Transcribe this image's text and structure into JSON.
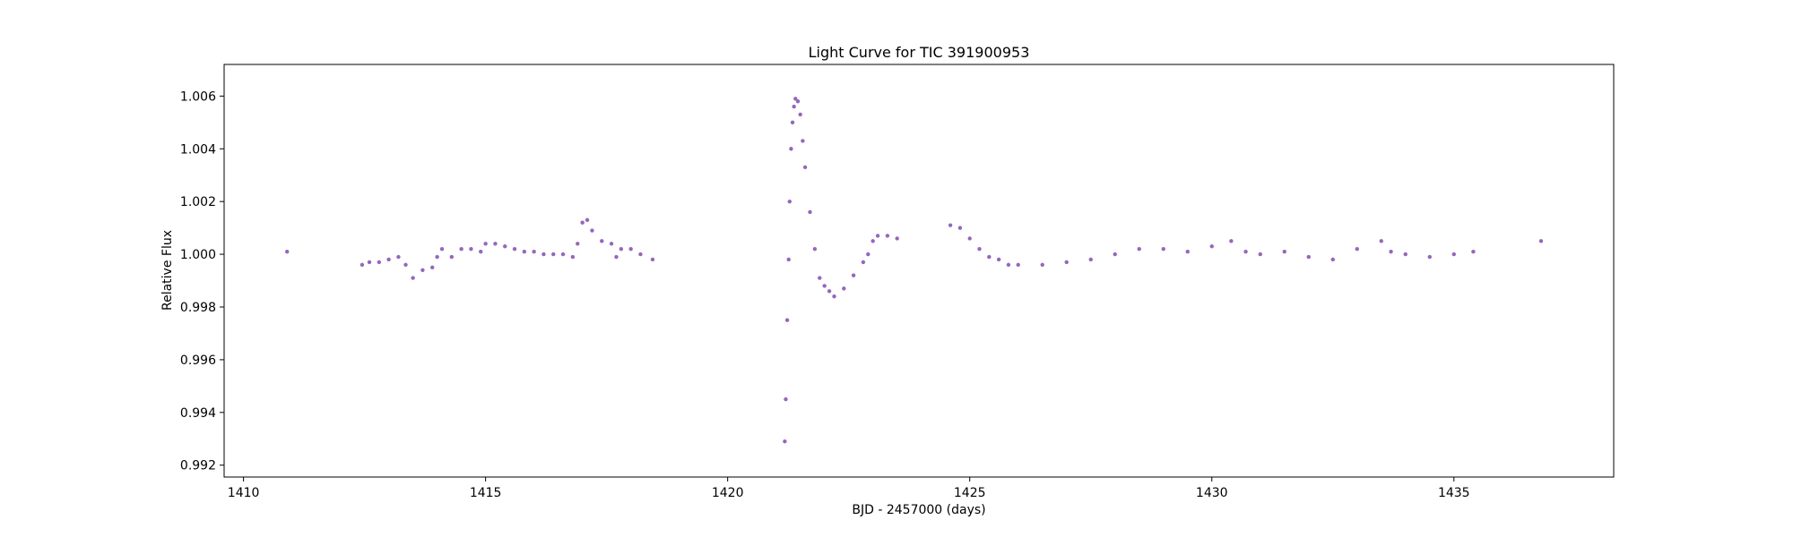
{
  "chart_data": {
    "type": "scatter",
    "title": "Light Curve for TIC 391900953",
    "xlabel": "BJD - 2457000 (days)",
    "ylabel": "Relative Flux",
    "xlim": [
      1409.6,
      1438.3
    ],
    "ylim": [
      0.99155,
      1.0072
    ],
    "xticks": [
      1410,
      1415,
      1420,
      1425,
      1430,
      1435
    ],
    "xtick_labels": [
      "1410",
      "1415",
      "1420",
      "1425",
      "1430",
      "1435"
    ],
    "yticks": [
      0.992,
      0.994,
      0.996,
      0.998,
      1.0,
      1.002,
      1.004,
      1.006
    ],
    "ytick_labels": [
      "0.992",
      "0.994",
      "0.996",
      "0.998",
      "1.000",
      "1.002",
      "1.004",
      "1.006"
    ],
    "grid": false,
    "legend": "none",
    "series": [
      {
        "color": "#9467bd",
        "points": [
          [
            1410.9,
            1.0001
          ],
          [
            1412.45,
            0.9996
          ],
          [
            1412.6,
            0.9997
          ],
          [
            1412.8,
            0.9997
          ],
          [
            1413.0,
            0.9998
          ],
          [
            1413.2,
            0.9999
          ],
          [
            1413.35,
            0.9996
          ],
          [
            1413.5,
            0.9991
          ],
          [
            1413.7,
            0.9994
          ],
          [
            1413.9,
            0.9995
          ],
          [
            1414.0,
            0.9999
          ],
          [
            1414.1,
            1.0002
          ],
          [
            1414.3,
            0.9999
          ],
          [
            1414.5,
            1.0002
          ],
          [
            1414.7,
            1.0002
          ],
          [
            1414.9,
            1.0001
          ],
          [
            1415.0,
            1.0004
          ],
          [
            1415.2,
            1.0004
          ],
          [
            1415.4,
            1.0003
          ],
          [
            1415.6,
            1.0002
          ],
          [
            1415.8,
            1.0001
          ],
          [
            1416.0,
            1.0001
          ],
          [
            1416.2,
            1.0
          ],
          [
            1416.4,
            1.0
          ],
          [
            1416.6,
            1.0
          ],
          [
            1416.8,
            0.9999
          ],
          [
            1416.9,
            1.0004
          ],
          [
            1417.0,
            1.0012
          ],
          [
            1417.1,
            1.0013
          ],
          [
            1417.2,
            1.0009
          ],
          [
            1417.4,
            1.0005
          ],
          [
            1417.6,
            1.0004
          ],
          [
            1417.7,
            0.9999
          ],
          [
            1417.8,
            1.0002
          ],
          [
            1418.0,
            1.0002
          ],
          [
            1418.2,
            1.0
          ],
          [
            1418.45,
            0.9998
          ],
          [
            1421.18,
            0.9929
          ],
          [
            1421.2,
            0.9945
          ],
          [
            1421.23,
            0.9975
          ],
          [
            1421.26,
            0.9998
          ],
          [
            1421.28,
            1.002
          ],
          [
            1421.31,
            1.004
          ],
          [
            1421.34,
            1.005
          ],
          [
            1421.37,
            1.0056
          ],
          [
            1421.4,
            1.0059
          ],
          [
            1421.45,
            1.0058
          ],
          [
            1421.5,
            1.0053
          ],
          [
            1421.55,
            1.0043
          ],
          [
            1421.6,
            1.0033
          ],
          [
            1421.7,
            1.0016
          ],
          [
            1421.8,
            1.0002
          ],
          [
            1421.9,
            0.9991
          ],
          [
            1422.0,
            0.9988
          ],
          [
            1422.1,
            0.9986
          ],
          [
            1422.2,
            0.9984
          ],
          [
            1422.4,
            0.9987
          ],
          [
            1422.6,
            0.9992
          ],
          [
            1422.8,
            0.9997
          ],
          [
            1422.9,
            1.0
          ],
          [
            1423.0,
            1.0005
          ],
          [
            1423.1,
            1.0007
          ],
          [
            1423.3,
            1.0007
          ],
          [
            1423.5,
            1.0006
          ],
          [
            1424.6,
            1.0011
          ],
          [
            1424.8,
            1.001
          ],
          [
            1425.0,
            1.0006
          ],
          [
            1425.2,
            1.0002
          ],
          [
            1425.4,
            0.9999
          ],
          [
            1425.6,
            0.9998
          ],
          [
            1425.8,
            0.9996
          ],
          [
            1426.0,
            0.9996
          ],
          [
            1426.5,
            0.9996
          ],
          [
            1427.0,
            0.9997
          ],
          [
            1427.5,
            0.9998
          ],
          [
            1428.0,
            1.0
          ],
          [
            1428.5,
            1.0002
          ],
          [
            1429.0,
            1.0002
          ],
          [
            1429.5,
            1.0001
          ],
          [
            1430.0,
            1.0003
          ],
          [
            1430.4,
            1.0005
          ],
          [
            1430.7,
            1.0001
          ],
          [
            1431.0,
            1.0
          ],
          [
            1431.5,
            1.0001
          ],
          [
            1432.0,
            0.9999
          ],
          [
            1432.5,
            0.9998
          ],
          [
            1433.0,
            1.0002
          ],
          [
            1433.5,
            1.0005
          ],
          [
            1433.7,
            1.0001
          ],
          [
            1434.0,
            1.0
          ],
          [
            1434.5,
            0.9999
          ],
          [
            1435.0,
            1.0
          ],
          [
            1435.4,
            1.0001
          ],
          [
            1436.8,
            1.0005
          ]
        ]
      }
    ]
  }
}
